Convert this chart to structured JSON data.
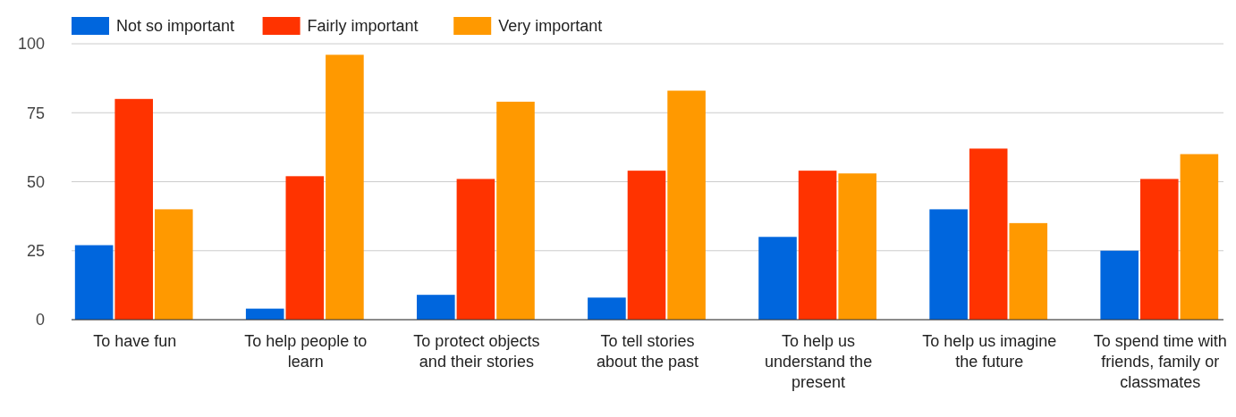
{
  "chart_data": {
    "type": "bar",
    "categories": [
      "To have fun",
      "To help people to learn",
      "To protect objects and their stories",
      "To tell stories about the past",
      "To help us understand the present",
      "To help us imagine the future",
      "To spend time with friends, family or classmates"
    ],
    "series": [
      {
        "name": "Not so important",
        "color": "#0066dd",
        "values": [
          27,
          4,
          9,
          8,
          30,
          40,
          25
        ]
      },
      {
        "name": "Fairly important",
        "color": "#ff3300",
        "values": [
          80,
          52,
          51,
          54,
          54,
          62,
          51
        ]
      },
      {
        "name": "Very important",
        "color": "#ff9900",
        "values": [
          40,
          96,
          79,
          83,
          53,
          35,
          60
        ]
      }
    ],
    "ylim": [
      0,
      100
    ],
    "yticks": [
      0,
      25,
      50,
      75,
      100
    ],
    "grid": "y",
    "legend": "top left"
  }
}
